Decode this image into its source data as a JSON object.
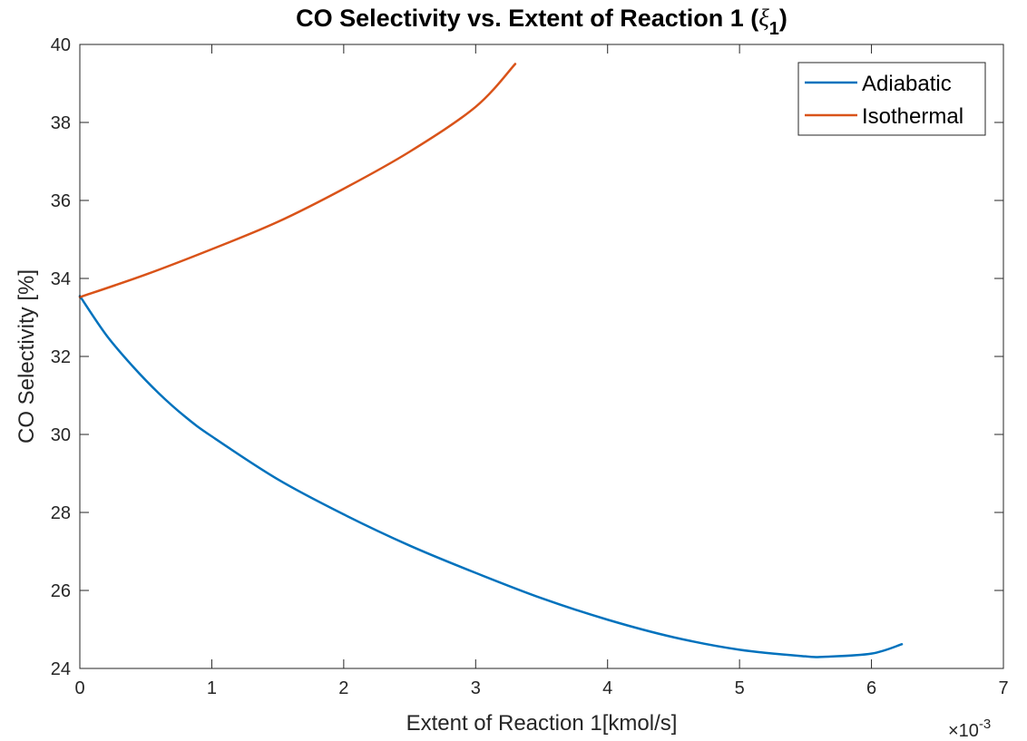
{
  "chart_data": {
    "type": "line",
    "title": {
      "prefix": "CO Selectivity vs. Extent of Reaction 1 (",
      "symbol": "ξ",
      "subscript": "1",
      "suffix": ")"
    },
    "xlabel": "Extent of Reaction 1[kmol/s]",
    "ylabel": "CO Selectivity [%]",
    "x_exponent": {
      "base": "×10",
      "power": "-3"
    },
    "xlim": [
      0,
      0.007
    ],
    "ylim": [
      24,
      40
    ],
    "x_ticks": [
      0,
      0.001,
      0.002,
      0.003,
      0.004,
      0.005,
      0.006,
      0.007
    ],
    "x_tick_labels": [
      "0",
      "1",
      "2",
      "3",
      "4",
      "5",
      "6",
      "7"
    ],
    "y_ticks": [
      24,
      26,
      28,
      30,
      32,
      34,
      36,
      38,
      40
    ],
    "y_tick_labels": [
      "24",
      "26",
      "28",
      "30",
      "32",
      "34",
      "36",
      "38",
      "40"
    ],
    "grid": false,
    "legend_position": "top-right",
    "series": [
      {
        "name": "Adiabatic",
        "color": "#0072BD",
        "x": [
          0,
          0.0002,
          0.0004,
          0.0006,
          0.0008,
          0.001,
          0.0015,
          0.002,
          0.0025,
          0.003,
          0.0035,
          0.004,
          0.0045,
          0.005,
          0.0055,
          0.00565,
          0.006,
          0.00623
        ],
        "y": [
          33.55,
          32.55,
          31.75,
          31.05,
          30.45,
          29.95,
          28.85,
          27.95,
          27.15,
          26.45,
          25.8,
          25.25,
          24.8,
          24.48,
          24.31,
          24.3,
          24.38,
          24.62
        ]
      },
      {
        "name": "Isothermal",
        "color": "#D95319",
        "x": [
          0,
          0.0005,
          0.001,
          0.0015,
          0.002,
          0.0025,
          0.003,
          0.0033
        ],
        "y": [
          33.52,
          34.1,
          34.75,
          35.45,
          36.3,
          37.25,
          38.4,
          39.5
        ]
      }
    ]
  }
}
